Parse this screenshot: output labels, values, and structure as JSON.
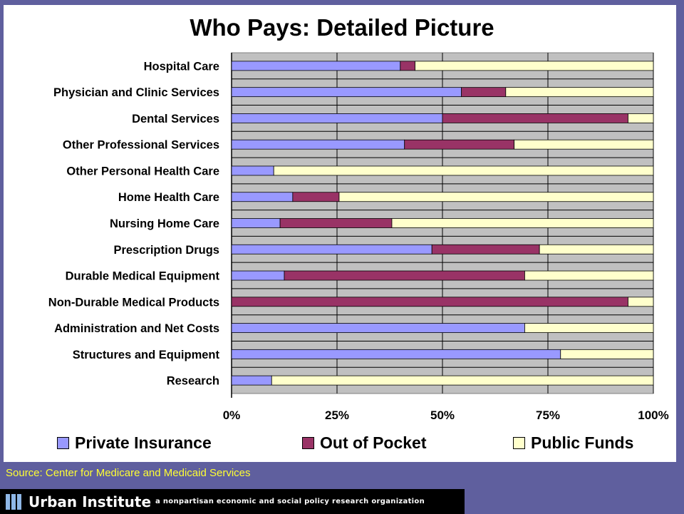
{
  "colors": {
    "private": "#9999ff",
    "outofpocket": "#993366",
    "public": "#ffffcc",
    "plot_bg": "#c0c0c0",
    "slide_bg": "#5f5f9e",
    "source_text": "#ffff33"
  },
  "footer": {
    "source": "Source: Center for Medicare and Medicaid Services",
    "org": "Urban Institute",
    "tagline": "a nonpartisan economic and social policy research organization",
    "logo_icon": "urban-institute-logo-icon"
  },
  "chart_data": {
    "type": "bar",
    "orientation": "horizontal",
    "stacked": true,
    "title": "Who Pays: Detailed Picture",
    "categories": [
      "Hospital Care",
      "Physician and Clinic Services",
      "Dental Services",
      "Other Professional Services",
      "Other Personal Health Care",
      "Home Health Care",
      "Nursing Home Care",
      "Prescription Drugs",
      "Durable Medical Equipment",
      "Non-Durable Medical Products",
      "Administration and Net Costs",
      "Structures and Equipment",
      "Research"
    ],
    "series": [
      {
        "name": "Private Insurance",
        "values": [
          40,
          54.5,
          50,
          41,
          10,
          14.5,
          11.5,
          47.5,
          12.5,
          0,
          69.5,
          78,
          9.5
        ]
      },
      {
        "name": "Out of Pocket",
        "values": [
          3.5,
          10.5,
          44,
          26,
          0,
          11,
          26.5,
          25.5,
          57,
          94,
          0,
          0,
          0
        ]
      },
      {
        "name": "Public Funds",
        "values": [
          56.5,
          35,
          6,
          33,
          90,
          74.5,
          62,
          27,
          30.5,
          6,
          30.5,
          22,
          90.5
        ]
      }
    ],
    "xlim": [
      0,
      100
    ],
    "xticks": [
      "0%",
      "25%",
      "50%",
      "75%",
      "100%"
    ],
    "grid": true,
    "legend_position": "bottom"
  }
}
